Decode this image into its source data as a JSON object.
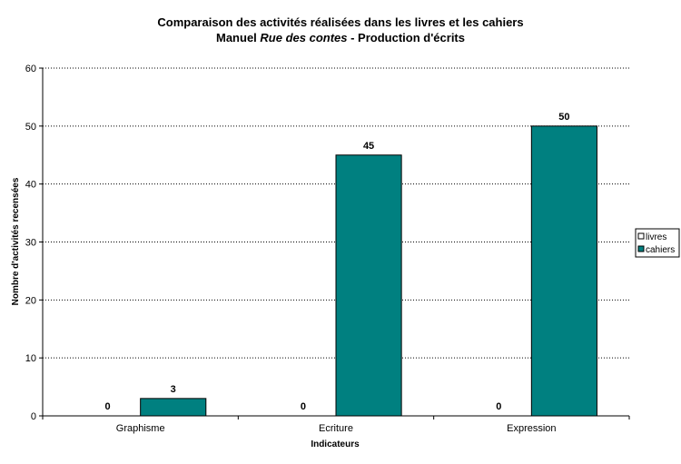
{
  "chart_data": {
    "type": "bar",
    "title": {
      "line1": "Comparaison des activités réalisées dans les livres et les cahiers",
      "line2_prefix": "Manuel ",
      "line2_italic": "Rue des contes",
      "line2_suffix": " - Production d'écrits"
    },
    "xlabel": "Indicateurs",
    "ylabel": "Nombre d'activités recensées",
    "categories": [
      "Graphisme",
      "Ecriture",
      "Expression"
    ],
    "series": [
      {
        "name": "livres",
        "values": [
          0,
          0,
          0
        ],
        "color": "#ffffff"
      },
      {
        "name": "cahiers",
        "values": [
          3,
          45,
          50
        ],
        "color": "#008080"
      }
    ],
    "ylim": [
      0,
      60
    ],
    "yticks": [
      0,
      10,
      20,
      30,
      40,
      50,
      60
    ],
    "grid": true,
    "grid_style": "dotted",
    "legend_position": "right",
    "data_labels": true
  }
}
